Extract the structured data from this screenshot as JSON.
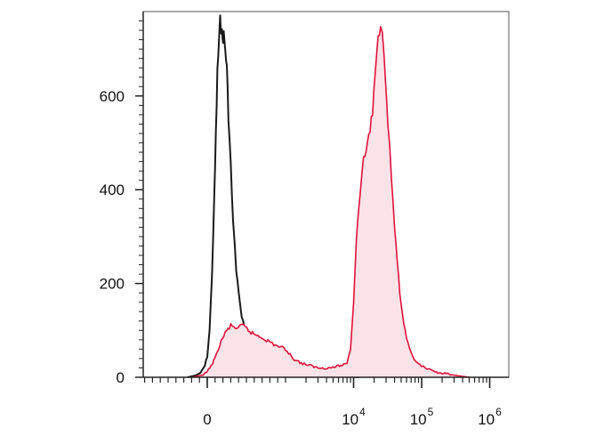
{
  "chart_data": {
    "type": "area",
    "title": "",
    "xlabel": "",
    "ylabel": "",
    "x_scale": "biexponential (log above 10^3)",
    "ylim": [
      0,
      780
    ],
    "grid": false,
    "legend": "none",
    "y_ticks": [
      {
        "value": 0,
        "label": "0"
      },
      {
        "value": 200,
        "label": "200"
      },
      {
        "value": 400,
        "label": "400"
      },
      {
        "value": 600,
        "label": "600"
      }
    ],
    "x_ticks": [
      {
        "value": 0,
        "label": "0",
        "base": "0",
        "exp": ""
      },
      {
        "value": 10000,
        "label": "10^4",
        "base": "10",
        "exp": "4"
      },
      {
        "value": 100000,
        "label": "10^5",
        "base": "10",
        "exp": "5"
      },
      {
        "value": 1000000,
        "label": "10^6",
        "base": "10",
        "exp": "6"
      }
    ],
    "series": [
      {
        "color": "#1a1a1a",
        "fill": "none",
        "points": [
          [
            -250,
            0
          ],
          [
            -150,
            4
          ],
          [
            -80,
            10
          ],
          [
            -30,
            25
          ],
          [
            0,
            45
          ],
          [
            30,
            100
          ],
          [
            60,
            220
          ],
          [
            90,
            380
          ],
          [
            110,
            520
          ],
          [
            130,
            650
          ],
          [
            150,
            720
          ],
          [
            165,
            760
          ],
          [
            180,
            745
          ],
          [
            195,
            720
          ],
          [
            210,
            730
          ],
          [
            230,
            700
          ],
          [
            250,
            660
          ],
          [
            270,
            560
          ],
          [
            300,
            450
          ],
          [
            330,
            330
          ],
          [
            370,
            230
          ],
          [
            420,
            150
          ],
          [
            480,
            100
          ],
          [
            560,
            70
          ],
          [
            650,
            50
          ],
          [
            780,
            35
          ],
          [
            950,
            25
          ],
          [
            1200,
            18
          ],
          [
            1600,
            14
          ],
          [
            2200,
            10
          ],
          [
            3000,
            7
          ],
          [
            4500,
            4
          ],
          [
            7000,
            2
          ],
          [
            12000,
            0
          ]
        ]
      },
      {
        "color": "#e0113a",
        "fill": "#fbe3e7",
        "points": [
          [
            -200,
            0
          ],
          [
            -50,
            5
          ],
          [
            0,
            12
          ],
          [
            50,
            25
          ],
          [
            100,
            40
          ],
          [
            160,
            70
          ],
          [
            230,
            95
          ],
          [
            300,
            110
          ],
          [
            380,
            105
          ],
          [
            460,
            110
          ],
          [
            560,
            95
          ],
          [
            700,
            85
          ],
          [
            850,
            70
          ],
          [
            1000,
            60
          ],
          [
            1300,
            40
          ],
          [
            1700,
            30
          ],
          [
            2300,
            25
          ],
          [
            3000,
            20
          ],
          [
            4500,
            20
          ],
          [
            6500,
            25
          ],
          [
            8000,
            30
          ],
          [
            9000,
            60
          ],
          [
            10000,
            160
          ],
          [
            11000,
            300
          ],
          [
            12500,
            400
          ],
          [
            14000,
            460
          ],
          [
            16000,
            500
          ],
          [
            19000,
            560
          ],
          [
            22000,
            700
          ],
          [
            25000,
            760
          ],
          [
            28000,
            700
          ],
          [
            32000,
            550
          ],
          [
            36000,
            420
          ],
          [
            42000,
            280
          ],
          [
            50000,
            150
          ],
          [
            60000,
            80
          ],
          [
            70000,
            50
          ],
          [
            85000,
            30
          ],
          [
            110000,
            20
          ],
          [
            150000,
            12
          ],
          [
            220000,
            8
          ],
          [
            350000,
            3
          ],
          [
            500000,
            0
          ]
        ]
      }
    ]
  }
}
